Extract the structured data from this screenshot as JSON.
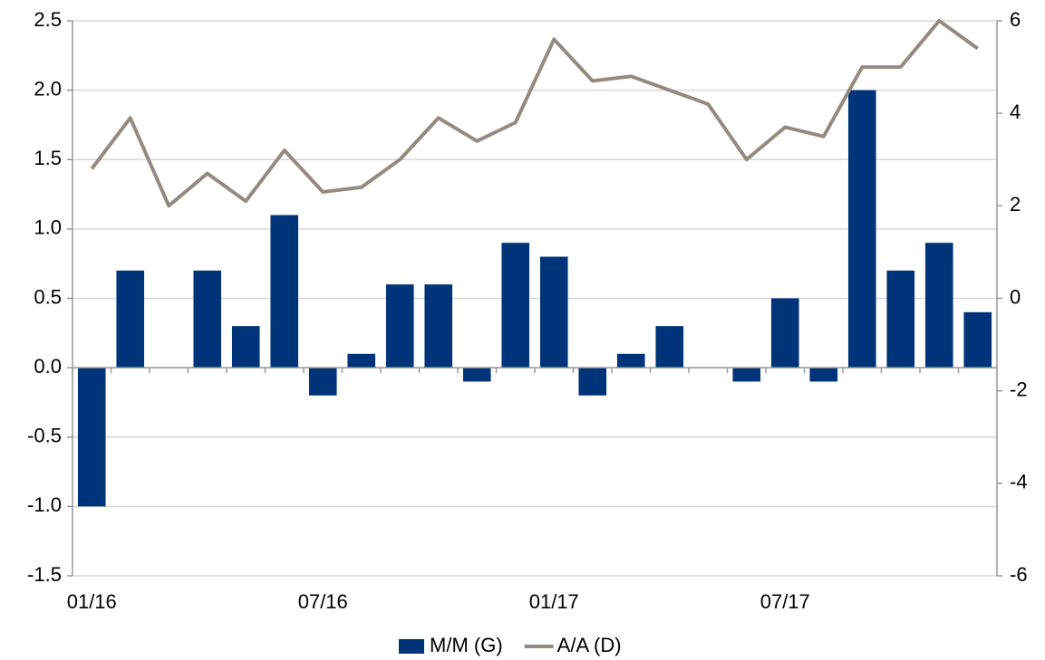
{
  "chart_data": {
    "type": "bar-line",
    "categories": [
      "01/16",
      null,
      null,
      null,
      null,
      null,
      "07/16",
      null,
      null,
      null,
      null,
      null,
      "01/17",
      null,
      null,
      null,
      null,
      null,
      "07/17",
      null,
      null,
      null,
      null,
      null
    ],
    "series": [
      {
        "name": "M/M (G)",
        "type": "bar",
        "color": "#003478",
        "values": [
          -1.0,
          0.7,
          0,
          0.7,
          0.3,
          1.1,
          -0.2,
          0.1,
          0.6,
          0.6,
          -0.1,
          0.9,
          0.8,
          -0.2,
          0.1,
          0.3,
          0,
          -0.1,
          0.5,
          -0.1,
          2.0,
          0.7,
          0.9,
          0.4
        ]
      },
      {
        "name": "A/A (D)",
        "type": "line",
        "axis": "y2",
        "color": "#948b80",
        "values": [
          2.8,
          3.9,
          2.0,
          2.7,
          2.1,
          3.2,
          2.3,
          2.4,
          3.0,
          3.9,
          3.4,
          3.8,
          5.6,
          4.7,
          4.8,
          4.5,
          4.2,
          3.0,
          3.7,
          3.5,
          5.0,
          5.0,
          6.0,
          5.4
        ]
      }
    ],
    "ylim": [
      -1.5,
      2.5
    ],
    "yticks": [
      {
        "value": -1.5,
        "label": "-1.5"
      },
      {
        "value": -1.0,
        "label": "-1.0"
      },
      -0.5,
      {
        "value": 0,
        "label": "0.0"
      },
      0.5,
      {
        "value": 1.0,
        "label": "1.0"
      },
      1.5,
      {
        "value": 2.0,
        "label": "2.0"
      },
      2.5
    ],
    "y2lim": [
      -6,
      6
    ],
    "y2ticks": [
      -6,
      -4,
      -2,
      0,
      2,
      4,
      6
    ],
    "grid": true,
    "legend": "bottom"
  }
}
